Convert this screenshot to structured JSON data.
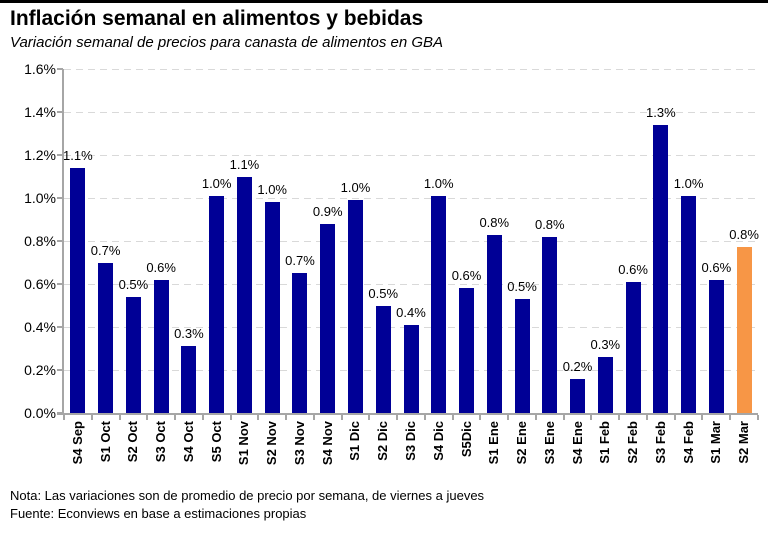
{
  "header": {
    "title": "Inflación semanal en alimentos y bebidas",
    "subtitle": "Variación semanal de precios para canasta de alimentos en GBA"
  },
  "chart_data": {
    "type": "bar",
    "title": "Inflación semanal en alimentos y bebidas",
    "subtitle": "Variación semanal de precios para canasta de alimentos en GBA",
    "xlabel": "",
    "ylabel": "",
    "categories": [
      "S4 Sep",
      "S1 Oct",
      "S2 Oct",
      "S3 Oct",
      "S4 Oct",
      "S5 Oct",
      "S1 Nov",
      "S2 Nov",
      "S3 Nov",
      "S4 Nov",
      "S1 Dic",
      "S2 Dic",
      "S3 Dic",
      "S4 Dic",
      "S5Dic",
      "S1 Ene",
      "S2 Ene",
      "S3 Ene",
      "S4 Ene",
      "S1 Feb",
      "S2 Feb",
      "S3 Feb",
      "S4 Feb",
      "S1 Mar",
      "S2 Mar"
    ],
    "values": [
      1.14,
      0.7,
      0.54,
      0.62,
      0.31,
      1.01,
      1.1,
      0.98,
      0.65,
      0.88,
      0.99,
      0.5,
      0.41,
      1.01,
      0.58,
      0.83,
      0.53,
      0.82,
      0.16,
      0.26,
      0.61,
      1.34,
      1.01,
      0.62,
      0.77
    ],
    "bar_labels": [
      "1.1%",
      "0.7%",
      "0.5%",
      "0.6%",
      "0.3%",
      "1.0%",
      "1.1%",
      "1.0%",
      "0.7%",
      "0.9%",
      "1.0%",
      "0.5%",
      "0.4%",
      "1.0%",
      "0.6%",
      "0.8%",
      "0.5%",
      "0.8%",
      "0.2%",
      "0.3%",
      "0.6%",
      "1.3%",
      "1.0%",
      "0.6%",
      "0.8%"
    ],
    "ytick_labels": [
      "0.0%",
      "0.2%",
      "0.4%",
      "0.6%",
      "0.8%",
      "1.0%",
      "1.2%",
      "1.4%",
      "1.6%"
    ],
    "ylim": [
      0,
      1.6
    ],
    "ytick_step": 0.2,
    "grid": true,
    "legend": "none",
    "bar_color": "#000096",
    "highlight_color": "#F79646",
    "highlight_index": 24,
    "gridline_color": "#d9d9d9",
    "axis_color": "#a6a6a6"
  },
  "footer": {
    "note": "Nota: Las variaciones son de promedio de precio por semana, de viernes a jueves",
    "source": "Fuente: Econviews en base a estimaciones propias"
  }
}
